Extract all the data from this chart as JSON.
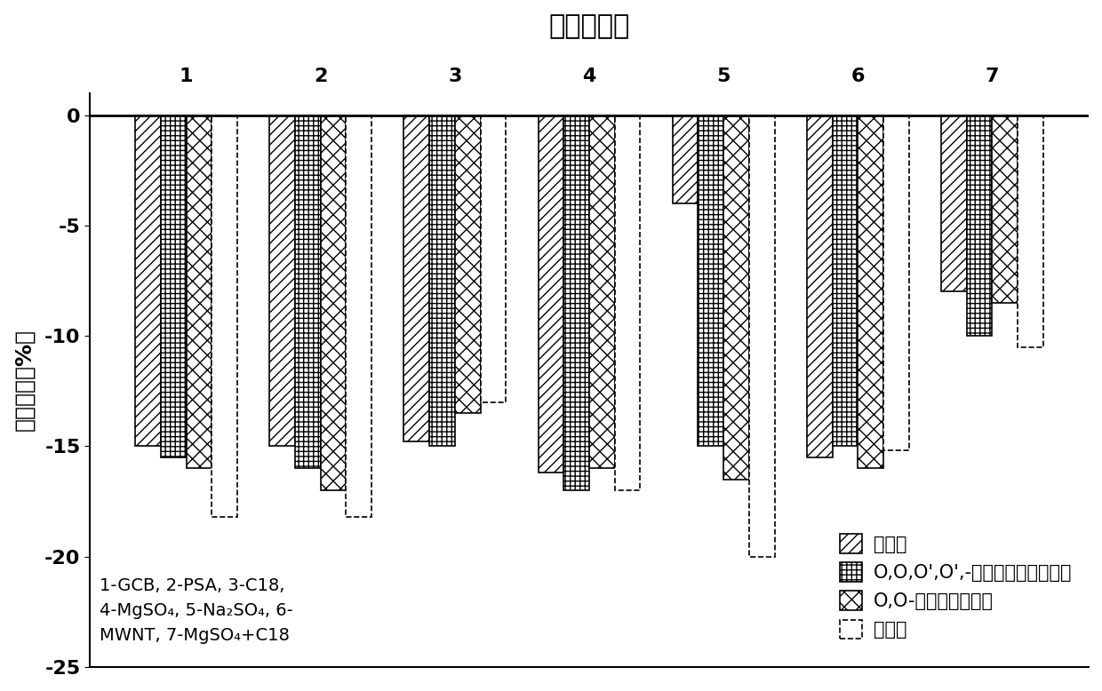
{
  "title": "不同净化剂",
  "ylabel": "基质效应（%）",
  "groups": [
    "1",
    "2",
    "3",
    "4",
    "5",
    "6",
    "7"
  ],
  "series_names": [
    "辛硫磷",
    "O,O,O',O',-四乙基二硫逐磷酸酯",
    "O,O-二乙基硫代磷酸",
    "辛氧磷"
  ],
  "data": {
    "辛硫磷": [
      -15.0,
      -15.0,
      -14.8,
      -16.2,
      -4.0,
      -15.5,
      -8.0
    ],
    "O,O,O',O',-四乙基二硫逐磷酸酯": [
      -15.5,
      -16.0,
      -15.0,
      -17.0,
      -15.0,
      -15.0,
      -10.0
    ],
    "O,O-二乙基硫代磷酸": [
      -16.0,
      -17.0,
      -13.5,
      -16.0,
      -16.5,
      -16.0,
      -8.5
    ],
    "辛氧磷": [
      -18.2,
      -18.2,
      -13.0,
      -17.0,
      -20.0,
      -15.2,
      -10.5
    ]
  },
  "ylim": [
    -25,
    1
  ],
  "yticks": [
    0,
    -5,
    -10,
    -15,
    -20,
    -25
  ],
  "bar_width": 0.19,
  "background_color": "#ffffff",
  "title_fontsize": 22,
  "axis_label_fontsize": 18,
  "tick_fontsize": 16,
  "legend_fontsize": 15,
  "annot_fontsize": 14
}
